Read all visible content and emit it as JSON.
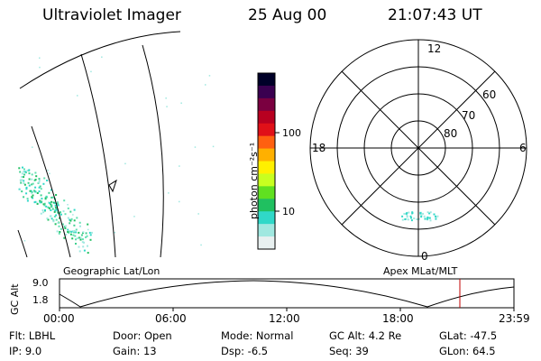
{
  "header": {
    "instrument": "Ultraviolet Imager",
    "date": "25 Aug 00",
    "time": "21:07:43 UT"
  },
  "colorbar": {
    "unit_label": "photon cm⁻²s⁻¹",
    "ticks": [
      "100",
      "10"
    ],
    "colors": [
      "#000028",
      "#3a0050",
      "#7a0040",
      "#b80020",
      "#e01018",
      "#ff6010",
      "#ffb000",
      "#fff000",
      "#c8ff20",
      "#60e020",
      "#20c060",
      "#30d8c8",
      "#a0e8e0",
      "#e8f0f0"
    ]
  },
  "polar": {
    "mlt_labels": {
      "top": "12",
      "left": "18",
      "right": "6",
      "bottom": "0"
    },
    "lat_labels": [
      "60",
      "70",
      "80"
    ]
  },
  "altitude_plot": {
    "left_title": "Geographic Lat/Lon",
    "right_title": "Apex MLat/MLT",
    "y_axis_label": "GC Alt",
    "y_ticks": [
      "9.0",
      "1.8"
    ],
    "x_ticks": [
      "00:00",
      "06:00",
      "12:00",
      "18:00",
      "23:59"
    ],
    "marker_color": "#c00000"
  },
  "footer": {
    "row1": {
      "filter": "Flt: LBHL",
      "door": "Door: Open",
      "mode": "Mode: Normal",
      "gc_alt": "GC Alt: 4.2 Re",
      "glat": "GLat: -47.5"
    },
    "row2": {
      "ip": "IP:  9.0",
      "gain": "Gain: 13",
      "dsp": "Dsp:   -6.5",
      "seq": "Seq: 39",
      "glon": "GLon:  64.5"
    }
  }
}
